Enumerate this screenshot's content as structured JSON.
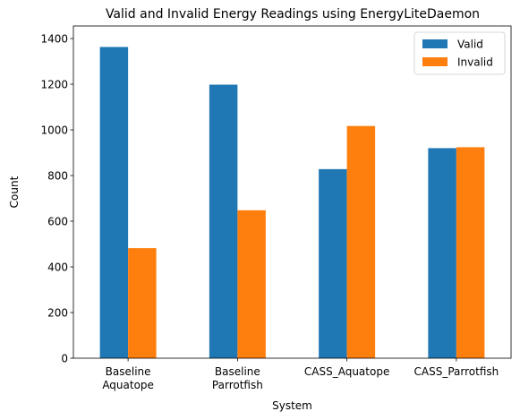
{
  "chart_data": {
    "type": "bar",
    "title": "Valid and Invalid Energy Readings using EnergyLiteDaemon",
    "xlabel": "System",
    "ylabel": "Count",
    "categories": [
      [
        "Baseline",
        "Aquatope"
      ],
      [
        "Baseline",
        "Parrotfish"
      ],
      [
        "CASS_Aquatope"
      ],
      [
        "CASS_Parrotfish"
      ]
    ],
    "series": [
      {
        "name": "Valid",
        "color": "#1f77b4",
        "values": [
          1363,
          1198,
          828,
          920
        ]
      },
      {
        "name": "Invalid",
        "color": "#ff7f0e",
        "values": [
          482,
          648,
          1017,
          924
        ]
      }
    ],
    "ylim": [
      0,
      1455
    ],
    "yticks": [
      0,
      200,
      400,
      600,
      800,
      1000,
      1200,
      1400
    ],
    "legend_position": "top-right",
    "grid": false
  }
}
